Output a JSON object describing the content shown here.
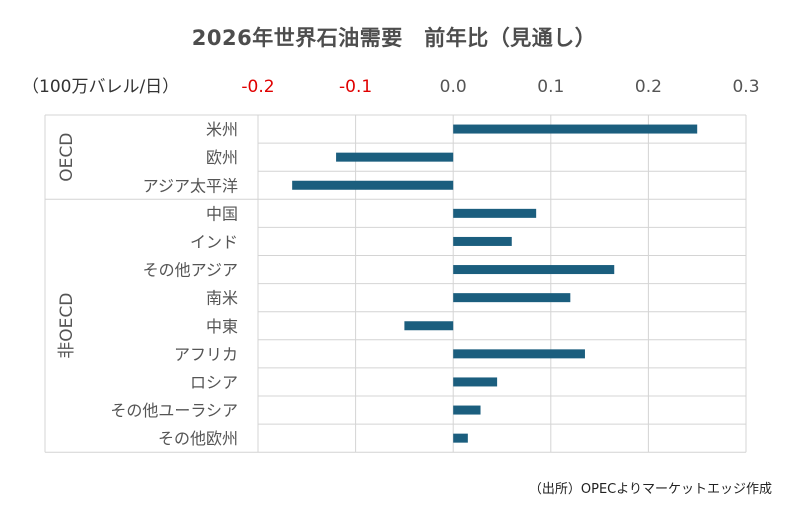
{
  "title": "2026年世界石油需要　前年比（見通し）",
  "unit": "（100万バレル/日）",
  "source": "（出所）OPECよりマーケットエッジ作成",
  "colors": {
    "bar": "#1b5e7e",
    "negative_tick": "#e00000",
    "positive_tick": "#555555",
    "grid": "#d4d4d4"
  },
  "chart_data": {
    "type": "bar",
    "orientation": "horizontal",
    "title": "2026年世界石油需要　前年比（見通し）",
    "xlabel": "（100万バレル/日）",
    "xlim": [
      -0.2,
      0.3
    ],
    "tick_values": [
      -0.2,
      -0.1,
      0.0,
      0.1,
      0.2,
      0.3
    ],
    "tick_labels": [
      "-0.2",
      "-0.1",
      "0.0",
      "0.1",
      "0.2",
      "0.3"
    ],
    "grid": true,
    "groups": [
      {
        "name": "OECD",
        "start": 0,
        "count": 3
      },
      {
        "name": "非OECD",
        "start": 3,
        "count": 9
      }
    ],
    "categories": [
      "米州",
      "欧州",
      "アジア太平洋",
      "中国",
      "インド",
      "その他アジア",
      "南米",
      "中東",
      "アフリカ",
      "ロシア",
      "その他ユーラシア",
      "その他欧州"
    ],
    "values": [
      0.25,
      -0.12,
      -0.165,
      0.085,
      0.06,
      0.165,
      0.12,
      -0.05,
      0.135,
      0.045,
      0.028,
      0.015
    ]
  }
}
